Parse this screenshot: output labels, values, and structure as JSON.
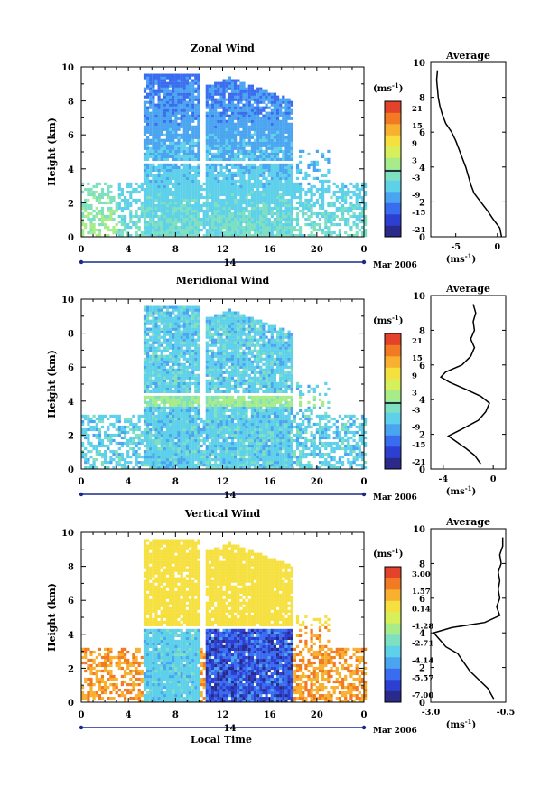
{
  "figure": {
    "xlabel": "Local Time",
    "date_label": "14",
    "month_label": "Mar 2006",
    "unit_label": "(ms",
    "unit_exp": "-1",
    "unit_close": ")"
  },
  "chart_data": [
    {
      "type": "heatmap",
      "title": "Zonal Wind",
      "ylabel": "Height (km)",
      "xlim": [
        0,
        24
      ],
      "ylim": [
        0,
        10
      ],
      "xticks": [
        "0",
        "4",
        "8",
        "12",
        "16",
        "20",
        "0"
      ],
      "yticks": [
        "0",
        "2",
        "4",
        "6",
        "8",
        "10"
      ],
      "colorbar": {
        "unit": "(ms-1)",
        "range": [
          -24,
          24
        ],
        "labels": [
          "21",
          "15",
          "9",
          "3",
          "-3",
          "-9",
          "-15",
          "-21"
        ],
        "zero_line": true
      },
      "profile": {
        "title": "Average",
        "xlim": [
          -8,
          1
        ],
        "xticks": [
          "-5",
          "0"
        ],
        "xlabel": "(ms-1)",
        "yticks": [
          "0",
          "2",
          "4",
          "6",
          "8",
          "10"
        ],
        "points": [
          [
            0.5,
            0
          ],
          [
            0.3,
            0.5
          ],
          [
            -0.5,
            1.0
          ],
          [
            -1.2,
            1.5
          ],
          [
            -2.0,
            2.0
          ],
          [
            -2.8,
            2.5
          ],
          [
            -3.2,
            3.0
          ],
          [
            -3.5,
            3.5
          ],
          [
            -3.8,
            4.0
          ],
          [
            -4.2,
            4.5
          ],
          [
            -4.6,
            5.0
          ],
          [
            -5.0,
            5.5
          ],
          [
            -5.5,
            6.0
          ],
          [
            -6.2,
            6.5
          ],
          [
            -6.6,
            7.0
          ],
          [
            -6.9,
            7.5
          ],
          [
            -7.1,
            8.0
          ],
          [
            -7.2,
            8.5
          ],
          [
            -7.3,
            9.0
          ],
          [
            -7.2,
            9.5
          ]
        ]
      }
    },
    {
      "type": "heatmap",
      "title": "Meridional Wind",
      "ylabel": "Height (km)",
      "xlim": [
        0,
        24
      ],
      "ylim": [
        0,
        10
      ],
      "xticks": [
        "0",
        "4",
        "8",
        "12",
        "16",
        "20",
        "0"
      ],
      "yticks": [
        "0",
        "2",
        "4",
        "6",
        "8",
        "10"
      ],
      "colorbar": {
        "unit": "(ms-1)",
        "range": [
          -24,
          24
        ],
        "labels": [
          "21",
          "15",
          "9",
          "3",
          "-3",
          "-9",
          "-15",
          "-21"
        ],
        "zero_line": true
      },
      "profile": {
        "title": "Average",
        "xlim": [
          -5,
          1
        ],
        "xticks": [
          "-4",
          "0"
        ],
        "xlabel": "(ms-1)",
        "yticks": [
          "0",
          "2",
          "4",
          "6",
          "8",
          "10"
        ],
        "points": [
          [
            -1.0,
            0.3
          ],
          [
            -1.5,
            0.8
          ],
          [
            -2.2,
            1.2
          ],
          [
            -3.0,
            1.6
          ],
          [
            -3.6,
            1.9
          ],
          [
            -2.5,
            2.3
          ],
          [
            -1.2,
            2.8
          ],
          [
            -0.6,
            3.3
          ],
          [
            -0.3,
            3.8
          ],
          [
            -1.0,
            4.2
          ],
          [
            -2.2,
            4.6
          ],
          [
            -3.5,
            5.0
          ],
          [
            -4.2,
            5.3
          ],
          [
            -3.8,
            5.6
          ],
          [
            -2.5,
            6.0
          ],
          [
            -1.8,
            6.5
          ],
          [
            -1.5,
            7.0
          ],
          [
            -1.8,
            7.5
          ],
          [
            -1.5,
            8.0
          ],
          [
            -1.6,
            8.5
          ],
          [
            -1.4,
            9.0
          ],
          [
            -1.6,
            9.5
          ]
        ]
      }
    },
    {
      "type": "heatmap",
      "title": "Vertical Wind",
      "ylabel": "Height (km)",
      "xlim": [
        0,
        24
      ],
      "ylim": [
        0,
        10
      ],
      "xticks": [
        "0",
        "4",
        "8",
        "12",
        "16",
        "20",
        "0"
      ],
      "yticks": [
        "0",
        "2",
        "4",
        "6",
        "8",
        "10"
      ],
      "colorbar": {
        "unit": "(ms-1)",
        "range": [
          -7.5,
          3.5
        ],
        "labels": [
          "3.00",
          "1.57",
          "0.14",
          "-1.28",
          "-2.71",
          "-4.14",
          "-5.57",
          "-7.00"
        ],
        "zero_line": false
      },
      "profile": {
        "title": "Average",
        "xlim": [
          -3.0,
          -0.5
        ],
        "xticks": [
          "-3.0",
          "-0.5"
        ],
        "xlabel": "(ms-1)",
        "yticks": [
          "0",
          "2",
          "4",
          "6",
          "8",
          "10"
        ],
        "points": [
          [
            -0.9,
            0.2
          ],
          [
            -1.1,
            0.8
          ],
          [
            -1.4,
            1.3
          ],
          [
            -1.7,
            1.8
          ],
          [
            -1.9,
            2.3
          ],
          [
            -2.1,
            2.8
          ],
          [
            -2.5,
            3.2
          ],
          [
            -2.7,
            3.6
          ],
          [
            -2.9,
            4.0
          ],
          [
            -2.3,
            4.3
          ],
          [
            -1.2,
            4.6
          ],
          [
            -0.7,
            5.0
          ],
          [
            -0.8,
            5.5
          ],
          [
            -0.7,
            6.0
          ],
          [
            -0.75,
            6.5
          ],
          [
            -0.7,
            7.0
          ],
          [
            -0.75,
            7.5
          ],
          [
            -0.65,
            8.0
          ],
          [
            -0.7,
            8.5
          ],
          [
            -0.6,
            9.0
          ],
          [
            -0.6,
            9.5
          ]
        ]
      }
    }
  ]
}
